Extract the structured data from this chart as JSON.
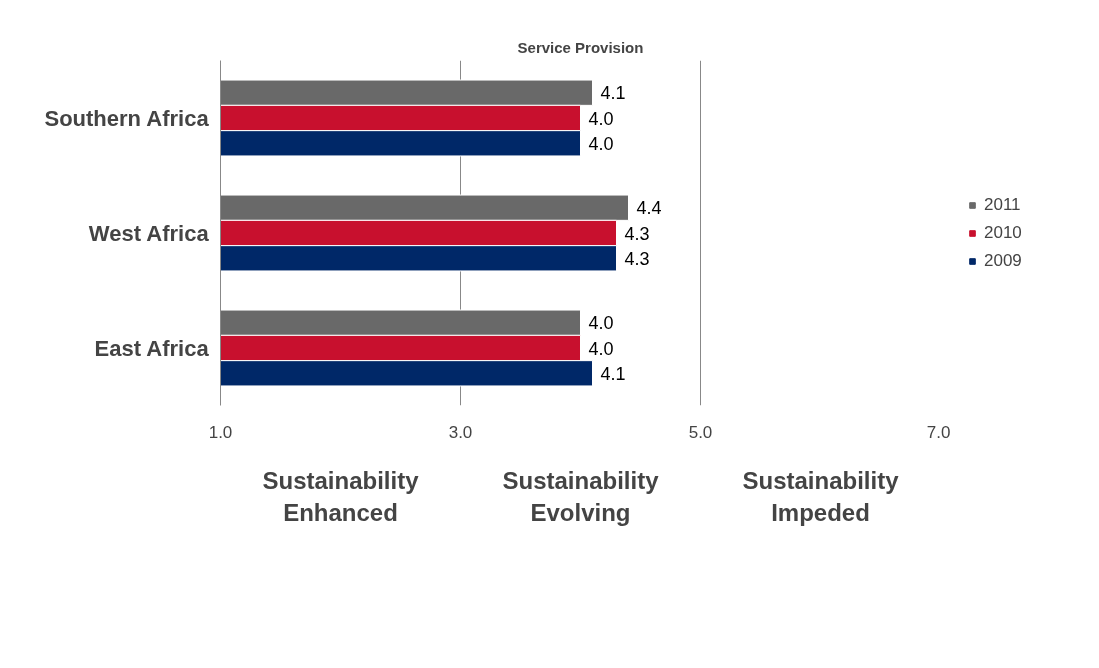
{
  "chart_data": {
    "type": "bar",
    "orientation": "horizontal",
    "title": "Service Provision",
    "categories": [
      "Southern Africa",
      "West Africa",
      "East Africa"
    ],
    "series": [
      {
        "name": "2011",
        "color": "#696969",
        "values": [
          4.1,
          4.4,
          4.0
        ],
        "value_labels": [
          "4.1",
          "4.4",
          "4.0"
        ]
      },
      {
        "name": "2010",
        "color": "#c8102e",
        "values": [
          4.0,
          4.3,
          4.0
        ],
        "value_labels": [
          "4.0",
          "4.3",
          "4.0"
        ]
      },
      {
        "name": "2009",
        "color": "#002868",
        "values": [
          4.0,
          4.3,
          4.1
        ],
        "value_labels": [
          "4.0",
          "4.3",
          "4.1"
        ]
      }
    ],
    "xlim": [
      1,
      7
    ],
    "xticks": [
      {
        "value": 1,
        "label": "1.0"
      },
      {
        "value": 3,
        "label": "3.0"
      },
      {
        "value": 5,
        "label": "5.0"
      },
      {
        "value": 7,
        "label": "7.0"
      }
    ],
    "grid": "x",
    "legend": "right",
    "annotations": [
      "Sustainability\nEnhanced",
      "Sustainability\nEvolving",
      "Sustainability\nImpeded"
    ]
  }
}
